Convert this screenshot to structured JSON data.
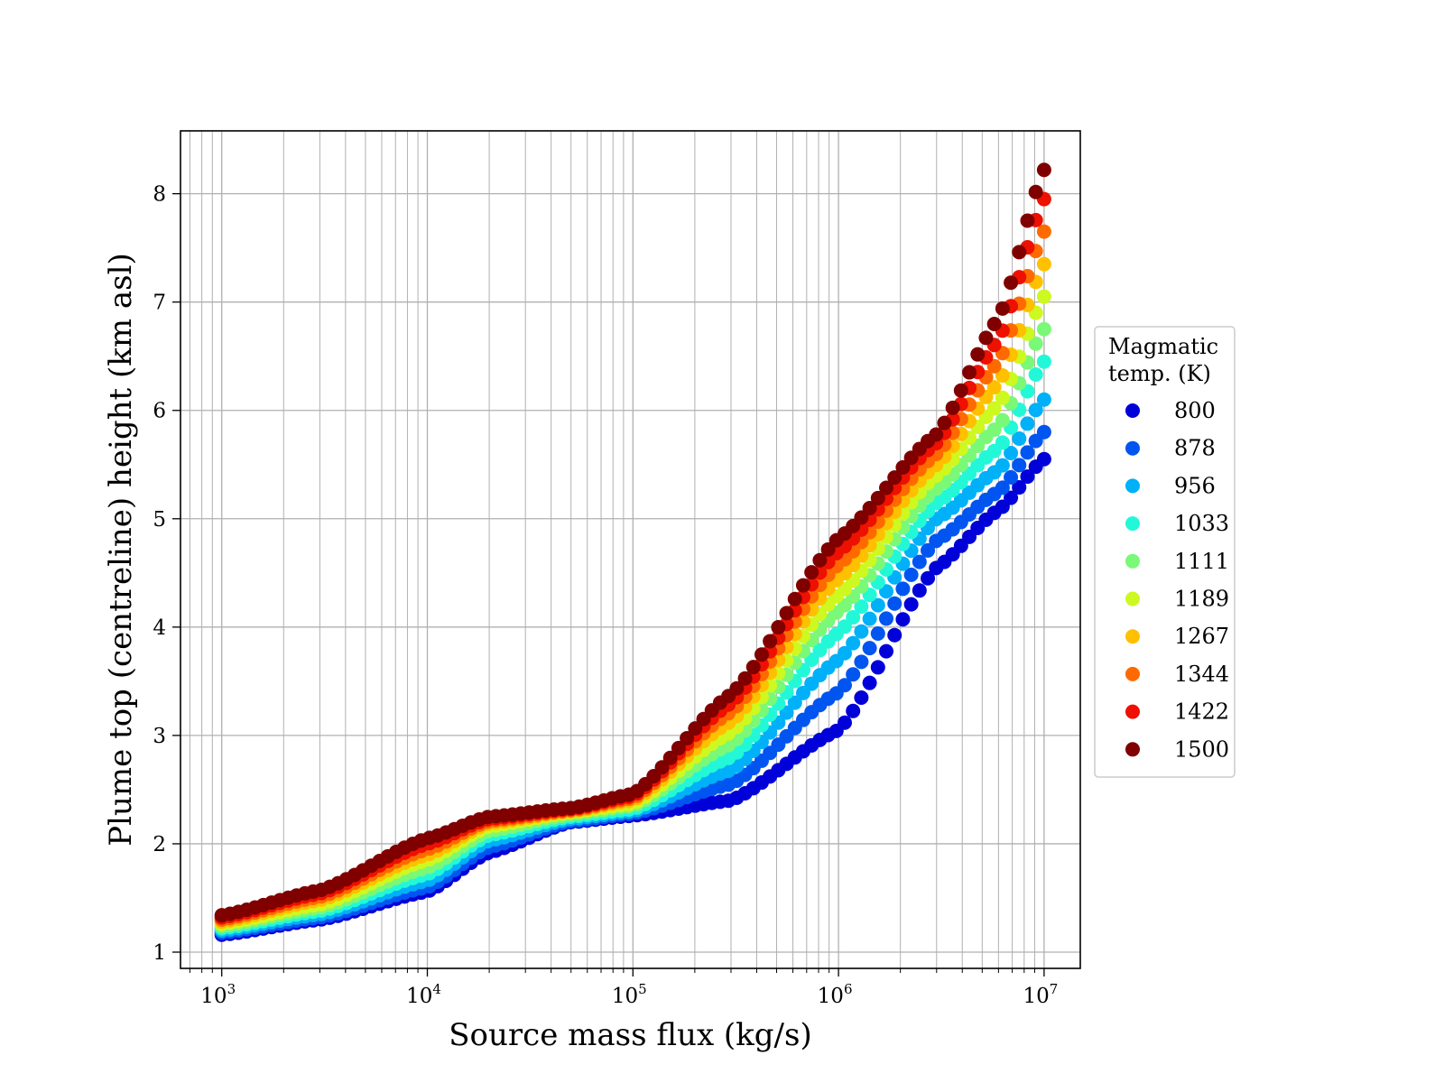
{
  "chart_data": {
    "type": "scatter",
    "title": "",
    "xlabel": "Source mass flux (kg/s)",
    "ylabel": "Plume top (centreline) height (km asl)",
    "xscale": "log",
    "xlim": [
      630,
      15000000
    ],
    "ylim": [
      0.85,
      8.58
    ],
    "x_ticks": [
      {
        "value": 1000,
        "base": "10",
        "exp": "3"
      },
      {
        "value": 10000,
        "base": "10",
        "exp": "4"
      },
      {
        "value": 100000,
        "base": "10",
        "exp": "5"
      },
      {
        "value": 1000000,
        "base": "10",
        "exp": "6"
      },
      {
        "value": 10000000,
        "base": "10",
        "exp": "7"
      }
    ],
    "y_ticks": [
      1,
      2,
      3,
      4,
      5,
      6,
      7,
      8
    ],
    "grid": "on (major and minor)",
    "marker": "filled circle",
    "legend": {
      "title_lines": [
        "Magmatic",
        "temp. (K)"
      ],
      "placement": "outside right"
    },
    "x_samples": [
      1000,
      3000,
      10000,
      20000,
      50000,
      100000,
      300000,
      1000000,
      3000000,
      6000000,
      10000000
    ],
    "series": [
      {
        "name": "800",
        "color": "#0000d8",
        "values": [
          1.16,
          1.3,
          1.56,
          1.92,
          2.2,
          2.26,
          2.4,
          3.05,
          4.55,
          5.08,
          5.55
        ]
      },
      {
        "name": "878",
        "color": "#0055f0",
        "values": [
          1.18,
          1.32,
          1.6,
          1.97,
          2.21,
          2.28,
          2.55,
          3.4,
          4.8,
          5.25,
          5.8
        ]
      },
      {
        "name": "956",
        "color": "#00b0f8",
        "values": [
          1.2,
          1.35,
          1.66,
          2.03,
          2.23,
          2.3,
          2.68,
          3.7,
          5.0,
          5.45,
          6.1
        ]
      },
      {
        "name": "1033",
        "color": "#22f8d8",
        "values": [
          1.22,
          1.38,
          1.72,
          2.08,
          2.25,
          2.32,
          2.8,
          3.95,
          5.15,
          5.65,
          6.45
        ]
      },
      {
        "name": "1111",
        "color": "#7af878",
        "values": [
          1.24,
          1.41,
          1.78,
          2.12,
          2.27,
          2.35,
          2.92,
          4.15,
          5.28,
          5.85,
          6.75
        ]
      },
      {
        "name": "1189",
        "color": "#cdf820",
        "values": [
          1.26,
          1.44,
          1.85,
          2.16,
          2.29,
          2.37,
          3.03,
          4.3,
          5.4,
          6.05,
          7.05
        ]
      },
      {
        "name": "1267",
        "color": "#ffc000",
        "values": [
          1.28,
          1.48,
          1.9,
          2.19,
          2.3,
          2.4,
          3.13,
          4.45,
          5.5,
          6.25,
          7.35
        ]
      },
      {
        "name": "1344",
        "color": "#ff6a00",
        "values": [
          1.3,
          1.51,
          1.95,
          2.21,
          2.31,
          2.42,
          3.22,
          4.58,
          5.6,
          6.45,
          7.65
        ]
      },
      {
        "name": "1422",
        "color": "#ee1000",
        "values": [
          1.32,
          1.54,
          2.0,
          2.23,
          2.32,
          2.44,
          3.3,
          4.7,
          5.7,
          6.65,
          7.95
        ]
      },
      {
        "name": "1500",
        "color": "#800000",
        "values": [
          1.34,
          1.57,
          2.05,
          2.25,
          2.33,
          2.46,
          3.38,
          4.82,
          5.78,
          6.85,
          8.22
        ]
      }
    ]
  }
}
